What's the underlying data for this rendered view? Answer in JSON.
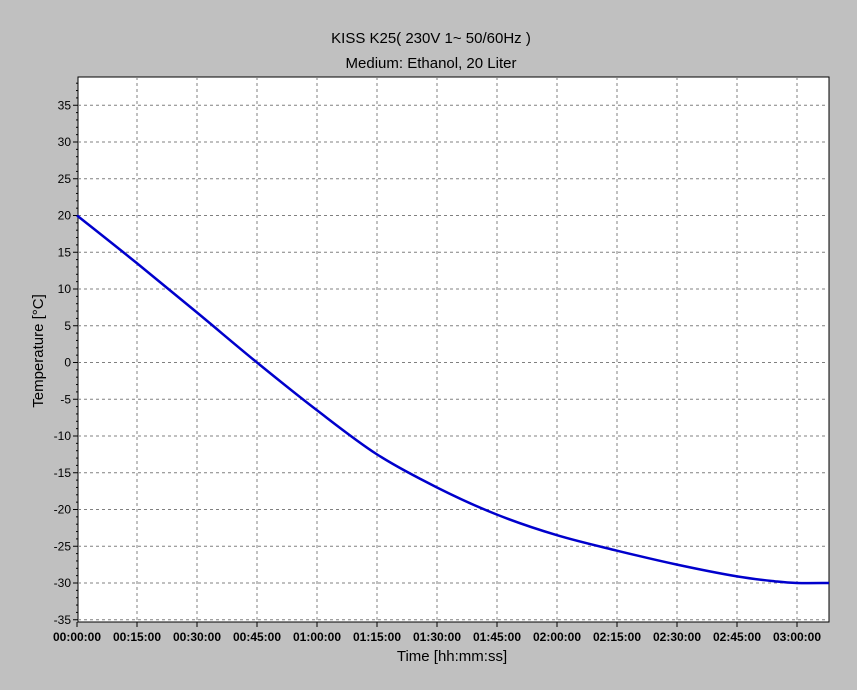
{
  "chart_data": {
    "type": "line",
    "title": "KISS K25( 230V 1~ 50/60Hz )",
    "subtitle": "Medium: Ethanol, 20 Liter",
    "xlabel": "Time [hh:mm:ss]",
    "ylabel": "Temperature [°C]",
    "x_unit": "minutes",
    "xlim": [
      0,
      188
    ],
    "ylim": [
      -35,
      38
    ],
    "x_ticks": [
      {
        "value": 0,
        "label": "00:00:00"
      },
      {
        "value": 15,
        "label": "00:15:00"
      },
      {
        "value": 30,
        "label": "00:30:00"
      },
      {
        "value": 45,
        "label": "00:45:00"
      },
      {
        "value": 60,
        "label": "01:00:00"
      },
      {
        "value": 75,
        "label": "01:15:00"
      },
      {
        "value": 90,
        "label": "01:30:00"
      },
      {
        "value": 105,
        "label": "01:45:00"
      },
      {
        "value": 120,
        "label": "02:00:00"
      },
      {
        "value": 135,
        "label": "02:15:00"
      },
      {
        "value": 150,
        "label": "02:30:00"
      },
      {
        "value": 165,
        "label": "02:45:00"
      },
      {
        "value": 180,
        "label": "03:00:00"
      }
    ],
    "y_ticks": [
      35,
      30,
      25,
      20,
      15,
      10,
      5,
      0,
      -5,
      -10,
      -15,
      -20,
      -25,
      -30,
      -35
    ],
    "grid": true,
    "series": [
      {
        "color": "#0000cc",
        "x": [
          0,
          15,
          30,
          45,
          60,
          75,
          90,
          105,
          120,
          135,
          150,
          165,
          175,
          180,
          188
        ],
        "y": [
          20,
          13.5,
          6.8,
          0,
          -6.5,
          -12.5,
          -17,
          -20.7,
          -23.5,
          -25.6,
          -27.5,
          -29.1,
          -29.8,
          -30,
          -30
        ]
      }
    ]
  }
}
